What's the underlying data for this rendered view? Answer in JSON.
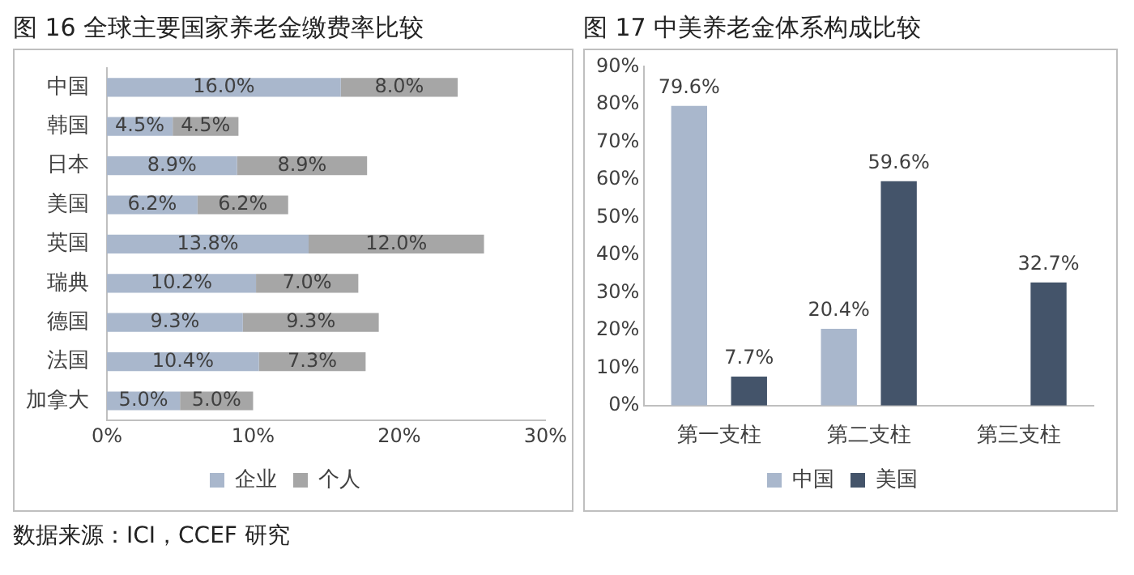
{
  "chart_data": [
    {
      "type": "bar",
      "title": "图 16 全球主要国家养老金缴费率比较",
      "orientation": "horizontal",
      "stacked": true,
      "legend": "bottom",
      "grid": false,
      "categories": [
        "中国",
        "韩国",
        "日本",
        "美国",
        "英国",
        "瑞典",
        "德国",
        "法国",
        "加拿大"
      ],
      "series": [
        {
          "name": "企业",
          "color": "#a9b7cc",
          "values": [
            16.0,
            4.5,
            8.9,
            6.2,
            13.8,
            10.2,
            9.3,
            10.4,
            5.0
          ],
          "value_labels": [
            "16.0%",
            "4.5%",
            "8.9%",
            "6.2%",
            "13.8%",
            "10.2%",
            "9.3%",
            "10.4%",
            "5.0%"
          ]
        },
        {
          "name": "个人",
          "color": "#a6a6a6",
          "values": [
            8.0,
            4.5,
            8.9,
            6.2,
            12.0,
            7.0,
            9.3,
            7.3,
            5.0
          ],
          "value_labels": [
            "8.0%",
            "4.5%",
            "8.9%",
            "6.2%",
            "12.0%",
            "7.0%",
            "9.3%",
            "7.3%",
            "5.0%"
          ]
        }
      ],
      "xlim": [
        0,
        30
      ],
      "xticks": [
        {
          "value": 0,
          "label": "0%"
        },
        {
          "value": 10,
          "label": "10%"
        },
        {
          "value": 20,
          "label": "20%"
        },
        {
          "value": 30,
          "label": "30%"
        }
      ],
      "annotations": [
        "数据来源：ICI，CCEF 研究"
      ]
    },
    {
      "type": "bar",
      "title": "图 17 中美养老金体系构成比较",
      "legend": "bottom",
      "grid": false,
      "categories": [
        "第一支柱",
        "第二支柱",
        "第三支柱"
      ],
      "series": [
        {
          "name": "中国",
          "color": "#a9b7cc",
          "values": [
            79.6,
            20.4,
            null
          ],
          "value_labels": [
            "79.6%",
            "20.4%",
            null
          ]
        },
        {
          "name": "美国",
          "color": "#44546a",
          "values": [
            7.7,
            59.6,
            32.7
          ],
          "value_labels": [
            "7.7%",
            "59.6%",
            "32.7%"
          ]
        }
      ],
      "ylim": [
        0,
        90
      ],
      "yticks": [
        {
          "value": 0,
          "label": "0%"
        },
        {
          "value": 10,
          "label": "10%"
        },
        {
          "value": 20,
          "label": "20%"
        },
        {
          "value": 30,
          "label": "30%"
        },
        {
          "value": 40,
          "label": "40%"
        },
        {
          "value": 50,
          "label": "50%"
        },
        {
          "value": 60,
          "label": "60%"
        },
        {
          "value": 70,
          "label": "70%"
        },
        {
          "value": 80,
          "label": "80%"
        },
        {
          "value": 90,
          "label": "90%"
        }
      ]
    }
  ]
}
